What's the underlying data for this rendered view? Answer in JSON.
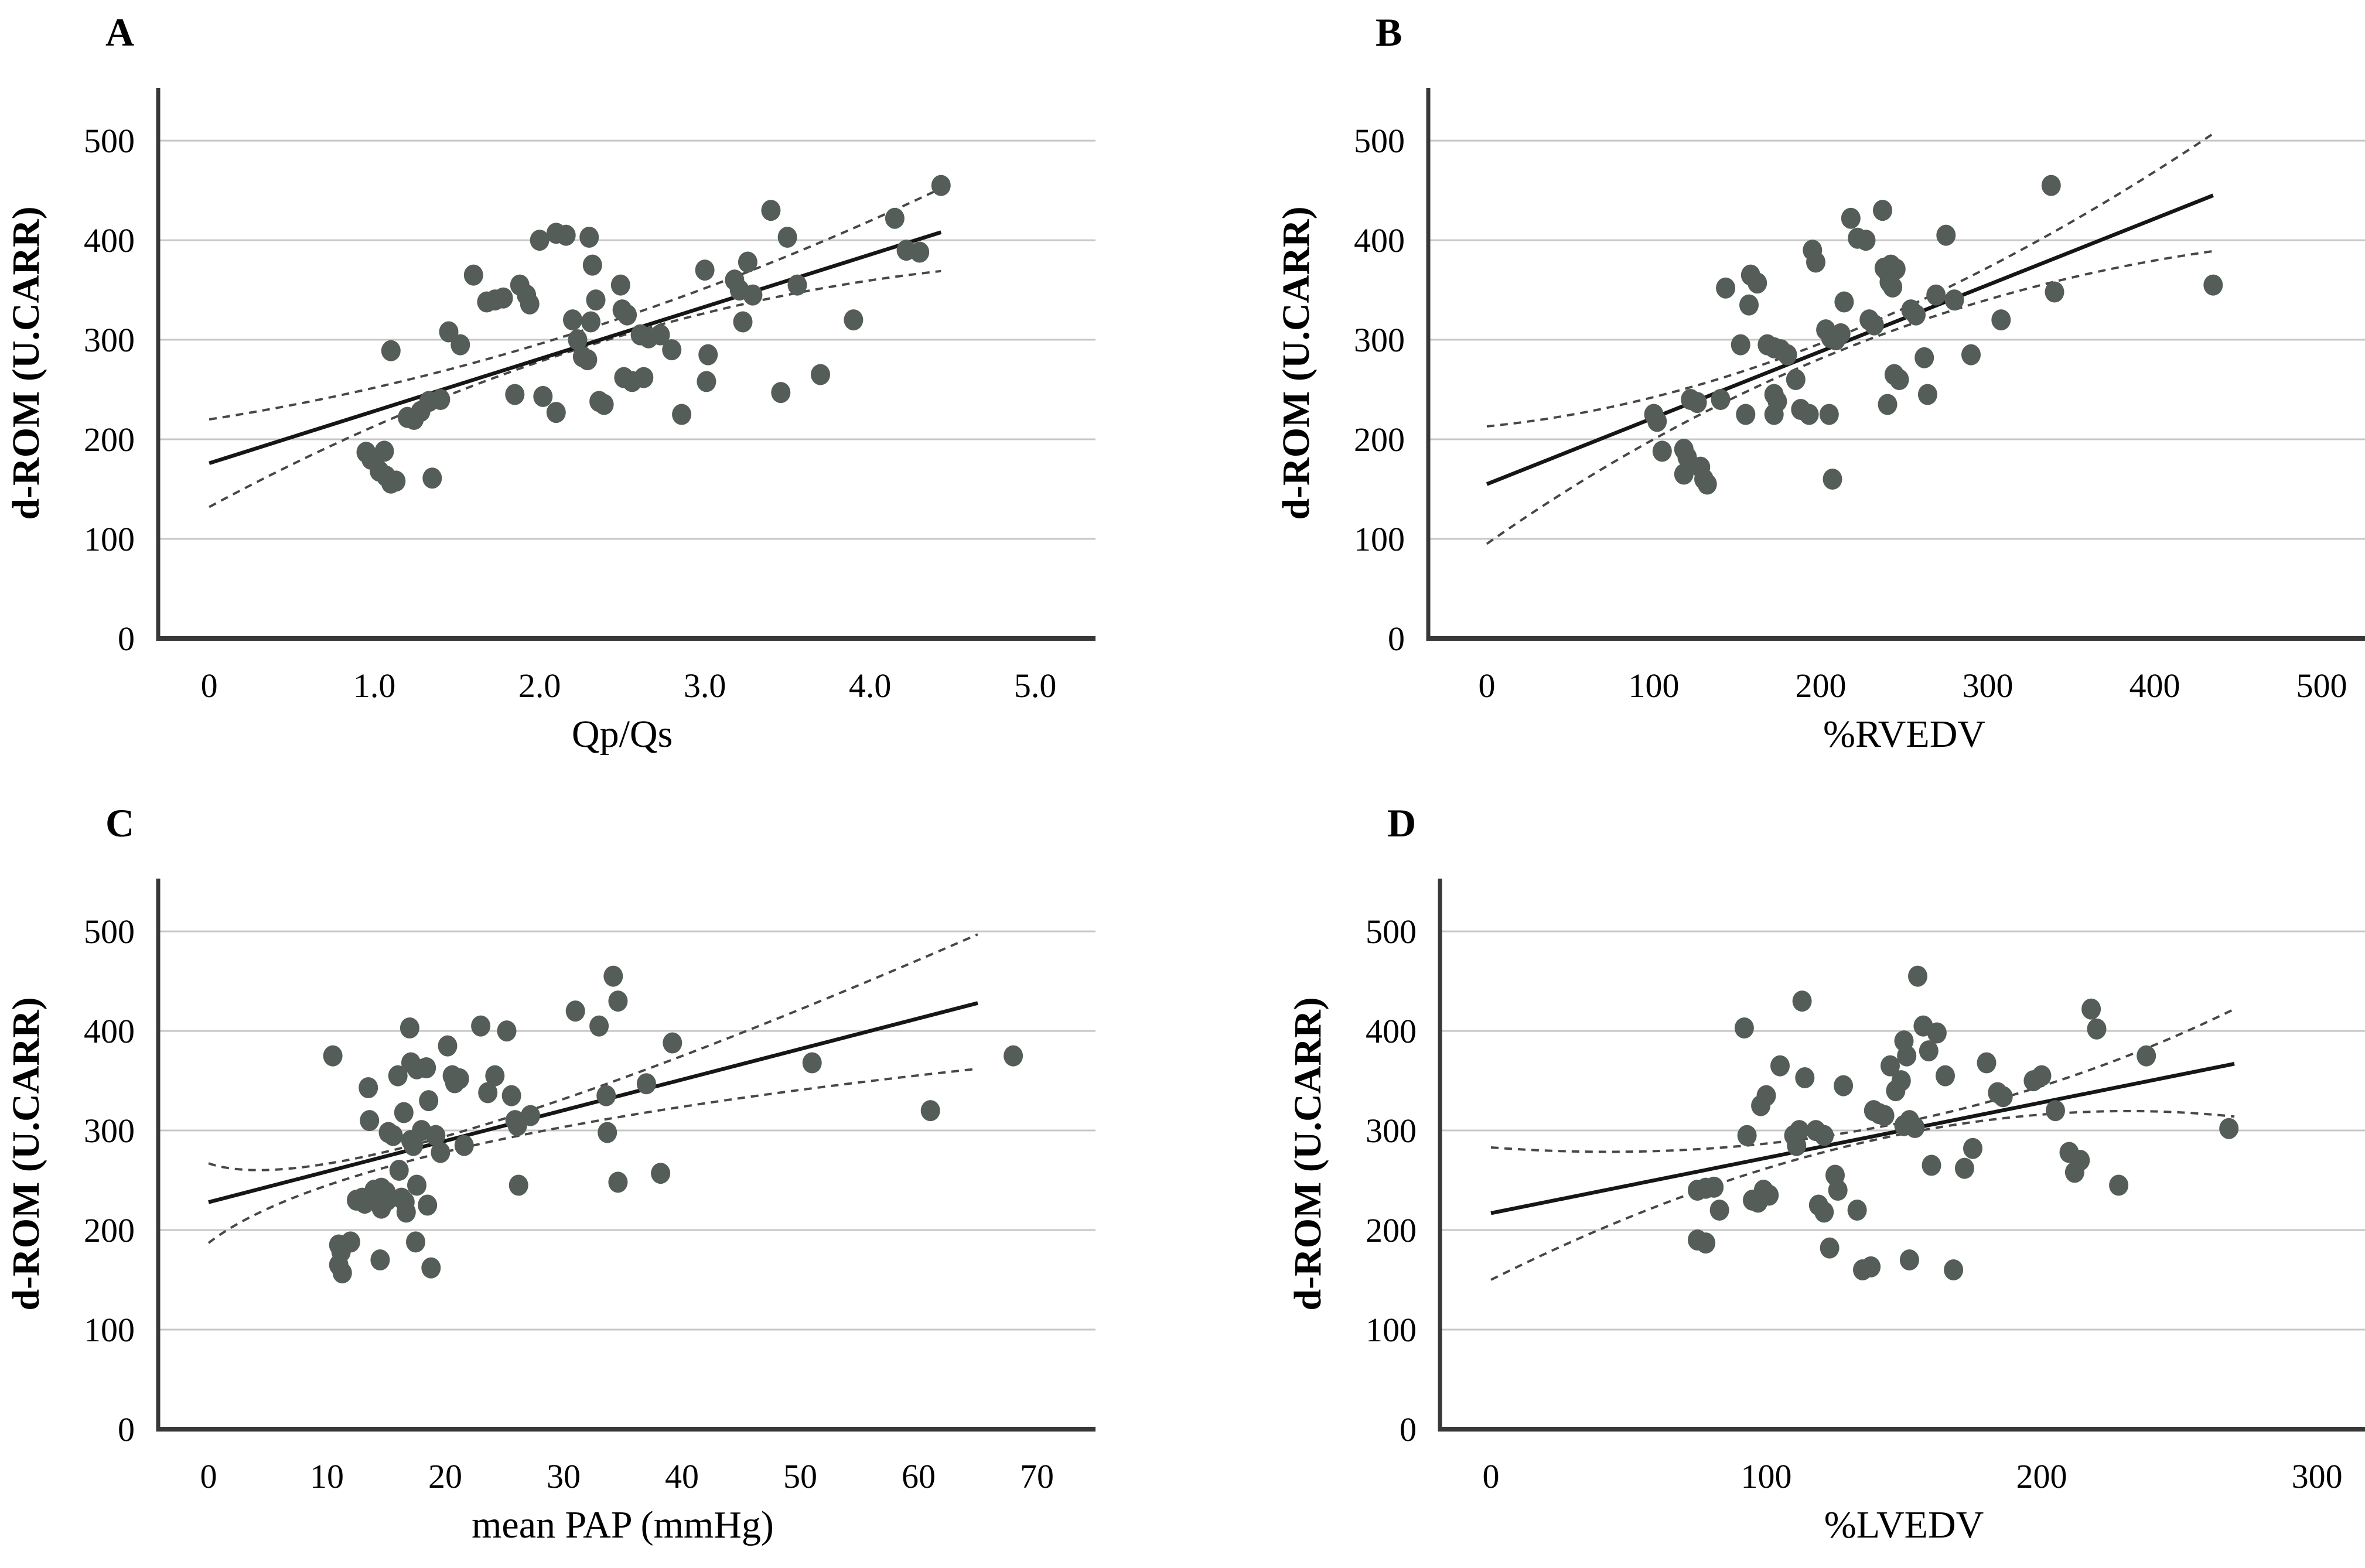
{
  "figure": {
    "description": "Four-panel scatter plot figure with linear regression fits and 95% confidence-interval dashed bands",
    "panel_labels": [
      "A",
      "B",
      "C",
      "D"
    ]
  },
  "colors": {
    "point": "#545d57",
    "fit_line": "#161616",
    "ci_line": "#474747",
    "grid": "#c7c7c7",
    "axis": "#383838",
    "text": "#000000"
  },
  "chart_data": [
    {
      "type": "scatter",
      "label": "A",
      "xlabel": "Qp/Qs",
      "ylabel": "d-ROM (U.CARR)",
      "legend": "none",
      "grid": "horizontal",
      "x_ticks": [
        {
          "v": 0,
          "label": "0"
        },
        {
          "v": 1,
          "label": "1.0"
        },
        {
          "v": 2,
          "label": "2.0"
        },
        {
          "v": 3,
          "label": "3.0"
        },
        {
          "v": 4,
          "label": "4.0"
        },
        {
          "v": 5,
          "label": "5.0"
        }
      ],
      "y_ticks": [
        0,
        100,
        200,
        300,
        400,
        500
      ],
      "xlim": [
        -0.309,
        5.365
      ],
      "ylim": [
        0,
        553
      ],
      "fit_line": {
        "x": [
          0,
          4.43
        ],
        "y": [
          176,
          408
        ]
      },
      "ci_upper": {
        "x": [
          0,
          2.2,
          4.43
        ],
        "y": [
          220,
          306,
          452
        ]
      },
      "ci_lower": {
        "x": [
          0,
          2.2,
          4.43
        ],
        "y": [
          132,
          289,
          369
        ]
      },
      "points": [
        [
          0.95,
          187
        ],
        [
          0.98,
          180
        ],
        [
          1.03,
          168
        ],
        [
          1.06,
          188
        ],
        [
          1.07,
          163
        ],
        [
          1.1,
          156
        ],
        [
          1.13,
          158
        ],
        [
          1.1,
          289
        ],
        [
          1.2,
          222
        ],
        [
          1.24,
          220
        ],
        [
          1.28,
          228
        ],
        [
          1.33,
          238
        ],
        [
          1.4,
          240
        ],
        [
          1.35,
          161
        ],
        [
          1.45,
          308
        ],
        [
          1.52,
          295
        ],
        [
          1.6,
          365
        ],
        [
          1.68,
          338
        ],
        [
          1.73,
          340
        ],
        [
          1.78,
          342
        ],
        [
          1.85,
          245
        ],
        [
          1.88,
          355
        ],
        [
          1.92,
          345
        ],
        [
          1.94,
          336
        ],
        [
          2.0,
          400
        ],
        [
          2.02,
          243
        ],
        [
          2.1,
          407
        ],
        [
          2.16,
          405
        ],
        [
          2.1,
          227
        ],
        [
          2.2,
          320
        ],
        [
          2.23,
          300
        ],
        [
          2.26,
          283
        ],
        [
          2.29,
          280
        ],
        [
          2.31,
          318
        ],
        [
          2.3,
          403
        ],
        [
          2.32,
          375
        ],
        [
          2.34,
          340
        ],
        [
          2.36,
          238
        ],
        [
          2.39,
          235
        ],
        [
          2.49,
          355
        ],
        [
          2.5,
          330
        ],
        [
          2.53,
          325
        ],
        [
          2.51,
          262
        ],
        [
          2.56,
          258
        ],
        [
          2.63,
          262
        ],
        [
          2.61,
          305
        ],
        [
          2.66,
          302
        ],
        [
          2.73,
          305
        ],
        [
          2.8,
          290
        ],
        [
          2.86,
          225
        ],
        [
          3.0,
          370
        ],
        [
          3.02,
          285
        ],
        [
          3.01,
          258
        ],
        [
          3.18,
          360
        ],
        [
          3.21,
          350
        ],
        [
          3.26,
          378
        ],
        [
          3.29,
          345
        ],
        [
          3.23,
          318
        ],
        [
          3.4,
          430
        ],
        [
          3.46,
          247
        ],
        [
          3.5,
          403
        ],
        [
          3.56,
          355
        ],
        [
          3.7,
          265
        ],
        [
          3.9,
          320
        ],
        [
          4.15,
          422
        ],
        [
          4.22,
          390
        ],
        [
          4.3,
          388
        ],
        [
          4.43,
          455
        ]
      ]
    },
    {
      "type": "scatter",
      "label": "B",
      "xlabel": "%RVEDV",
      "ylabel": "d-ROM (U.CARR)",
      "legend": "none",
      "grid": "horizontal",
      "x_ticks": [
        {
          "v": 0,
          "label": "0"
        },
        {
          "v": 100,
          "label": "100"
        },
        {
          "v": 200,
          "label": "200"
        },
        {
          "v": 300,
          "label": "300"
        },
        {
          "v": 400,
          "label": "400"
        },
        {
          "v": 500,
          "label": "500"
        }
      ],
      "y_ticks": [
        0,
        100,
        200,
        300,
        400,
        500
      ],
      "xlim": [
        -35.1,
        526.3
      ],
      "ylim": [
        0,
        553
      ],
      "fit_line": {
        "x": [
          0,
          435
        ],
        "y": [
          155,
          445
        ]
      },
      "ci_upper": {
        "x": [
          0,
          210,
          435
        ],
        "y": [
          213,
          303,
          507
        ]
      },
      "ci_lower": {
        "x": [
          0,
          210,
          435
        ],
        "y": [
          95,
          288,
          389
        ]
      },
      "points": [
        [
          100,
          225
        ],
        [
          102,
          218
        ],
        [
          105,
          188
        ],
        [
          118,
          190
        ],
        [
          120,
          182
        ],
        [
          118,
          165
        ],
        [
          128,
          172
        ],
        [
          130,
          160
        ],
        [
          132,
          155
        ],
        [
          122,
          240
        ],
        [
          126,
          237
        ],
        [
          140,
          240
        ],
        [
          143,
          352
        ],
        [
          152,
          295
        ],
        [
          158,
          365
        ],
        [
          162,
          357
        ],
        [
          157,
          335
        ],
        [
          155,
          225
        ],
        [
          168,
          295
        ],
        [
          172,
          292
        ],
        [
          176,
          290
        ],
        [
          180,
          285
        ],
        [
          172,
          245
        ],
        [
          174,
          238
        ],
        [
          172,
          225
        ],
        [
          185,
          260
        ],
        [
          188,
          230
        ],
        [
          193,
          225
        ],
        [
          195,
          390
        ],
        [
          197,
          378
        ],
        [
          203,
          310
        ],
        [
          206,
          302
        ],
        [
          209,
          300
        ],
        [
          212,
          306
        ],
        [
          205,
          225
        ],
        [
          207,
          160
        ],
        [
          214,
          338
        ],
        [
          218,
          422
        ],
        [
          222,
          402
        ],
        [
          227,
          400
        ],
        [
          229,
          320
        ],
        [
          232,
          315
        ],
        [
          237,
          430
        ],
        [
          238,
          372
        ],
        [
          240,
          368
        ],
        [
          242,
          375
        ],
        [
          241,
          358
        ],
        [
          245,
          371
        ],
        [
          243,
          353
        ],
        [
          244,
          265
        ],
        [
          247,
          260
        ],
        [
          240,
          235
        ],
        [
          254,
          330
        ],
        [
          257,
          325
        ],
        [
          262,
          282
        ],
        [
          264,
          245
        ],
        [
          269,
          345
        ],
        [
          275,
          405
        ],
        [
          280,
          340
        ],
        [
          290,
          285
        ],
        [
          308,
          320
        ],
        [
          338,
          455
        ],
        [
          340,
          348
        ],
        [
          435,
          355
        ]
      ]
    },
    {
      "type": "scatter",
      "label": "C",
      "xlabel": "mean PAP (mmHg)",
      "ylabel": "d-ROM (U.CARR)",
      "legend": "none",
      "grid": "horizontal",
      "x_ticks": [
        {
          "v": 0,
          "label": "0"
        },
        {
          "v": 10,
          "label": "10"
        },
        {
          "v": 20,
          "label": "20"
        },
        {
          "v": 30,
          "label": "30"
        },
        {
          "v": 40,
          "label": "40"
        },
        {
          "v": 50,
          "label": "50"
        },
        {
          "v": 60,
          "label": "60"
        },
        {
          "v": 70,
          "label": "70"
        }
      ],
      "y_ticks": [
        0,
        100,
        200,
        300,
        400,
        500
      ],
      "xlim": [
        -4.257,
        74.95
      ],
      "ylim": [
        0,
        553
      ],
      "fit_line": {
        "x": [
          0,
          65
        ],
        "y": [
          228,
          428
        ]
      },
      "ci_upper": {
        "x": [
          0,
          22,
          65
        ],
        "y": [
          267,
          301,
          497
        ]
      },
      "ci_lower": {
        "x": [
          0,
          22,
          65
        ],
        "y": [
          187,
          284,
          362
        ]
      },
      "points": [
        [
          10.5,
          375
        ],
        [
          11,
          185
        ],
        [
          11.2,
          178
        ],
        [
          11,
          165
        ],
        [
          11.3,
          157
        ],
        [
          12,
          188
        ],
        [
          12.5,
          230
        ],
        [
          13,
          232
        ],
        [
          13.2,
          227
        ],
        [
          13.5,
          343
        ],
        [
          13.6,
          310
        ],
        [
          14,
          240
        ],
        [
          14.3,
          238
        ],
        [
          14.6,
          242
        ],
        [
          14.6,
          222
        ],
        [
          15,
          238
        ],
        [
          15.1,
          230
        ],
        [
          15.2,
          298
        ],
        [
          15.6,
          295
        ],
        [
          14.5,
          170
        ],
        [
          16,
          355
        ],
        [
          16.5,
          318
        ],
        [
          16.1,
          260
        ],
        [
          16.3,
          232
        ],
        [
          16.6,
          228
        ],
        [
          16.7,
          218
        ],
        [
          17,
          403
        ],
        [
          17.1,
          368
        ],
        [
          17.6,
          362
        ],
        [
          17.1,
          290
        ],
        [
          17.3,
          285
        ],
        [
          17.6,
          245
        ],
        [
          17.5,
          188
        ],
        [
          18,
          300
        ],
        [
          18.4,
          363
        ],
        [
          18.6,
          330
        ],
        [
          18.5,
          225
        ],
        [
          18.8,
          162
        ],
        [
          19.2,
          295
        ],
        [
          19.6,
          278
        ],
        [
          20.2,
          385
        ],
        [
          20.6,
          355
        ],
        [
          20.8,
          348
        ],
        [
          21.2,
          352
        ],
        [
          21.6,
          285
        ],
        [
          23,
          405
        ],
        [
          23.6,
          338
        ],
        [
          24.2,
          355
        ],
        [
          25.2,
          400
        ],
        [
          25.6,
          335
        ],
        [
          25.9,
          310
        ],
        [
          26.1,
          305
        ],
        [
          26.2,
          245
        ],
        [
          27.2,
          315
        ],
        [
          31,
          420
        ],
        [
          33,
          405
        ],
        [
          33.6,
          335
        ],
        [
          33.7,
          298
        ],
        [
          34.2,
          455
        ],
        [
          34.6,
          430
        ],
        [
          34.6,
          248
        ],
        [
          37,
          347
        ],
        [
          38.2,
          257
        ],
        [
          39.2,
          388
        ],
        [
          51,
          368
        ],
        [
          61,
          320
        ],
        [
          68,
          375
        ]
      ]
    },
    {
      "type": "scatter",
      "label": "D",
      "xlabel": "%LVEDV",
      "ylabel": "d-ROM (U.CARR)",
      "legend": "none",
      "grid": "horizontal",
      "x_ticks": [
        {
          "v": 0,
          "label": "0"
        },
        {
          "v": 100,
          "label": "100"
        },
        {
          "v": 200,
          "label": "200"
        },
        {
          "v": 300,
          "label": "300"
        }
      ],
      "y_ticks": [
        0,
        100,
        200,
        300,
        400,
        500
      ],
      "xlim": [
        -18.51,
        321.9
      ],
      "ylim": [
        0,
        553
      ],
      "fit_line": {
        "x": [
          0,
          270
        ],
        "y": [
          217,
          367
        ]
      },
      "ci_upper": {
        "x": [
          0,
          140,
          270
        ],
        "y": [
          283,
          303,
          422
        ]
      },
      "ci_lower": {
        "x": [
          0,
          140,
          270
        ],
        "y": [
          150,
          291,
          314
        ]
      },
      "points": [
        [
          75,
          240
        ],
        [
          78,
          242
        ],
        [
          81,
          243
        ],
        [
          75,
          190
        ],
        [
          78,
          187
        ],
        [
          83,
          220
        ],
        [
          92,
          403
        ],
        [
          93,
          295
        ],
        [
          95,
          230
        ],
        [
          97,
          228
        ],
        [
          99,
          240
        ],
        [
          101,
          235
        ],
        [
          98,
          325
        ],
        [
          100,
          335
        ],
        [
          105,
          365
        ],
        [
          110,
          295
        ],
        [
          112,
          300
        ],
        [
          111,
          285
        ],
        [
          113,
          430
        ],
        [
          114,
          353
        ],
        [
          118,
          300
        ],
        [
          121,
          295
        ],
        [
          119,
          225
        ],
        [
          121,
          218
        ],
        [
          125,
          255
        ],
        [
          126,
          240
        ],
        [
          123,
          182
        ],
        [
          128,
          345
        ],
        [
          133,
          220
        ],
        [
          135,
          160
        ],
        [
          138,
          163
        ],
        [
          139,
          320
        ],
        [
          141,
          317
        ],
        [
          143,
          315
        ],
        [
          145,
          365
        ],
        [
          147,
          340
        ],
        [
          149,
          350
        ],
        [
          150,
          390
        ],
        [
          151,
          375
        ],
        [
          150,
          305
        ],
        [
          152,
          310
        ],
        [
          154,
          303
        ],
        [
          152,
          170
        ],
        [
          155,
          455
        ],
        [
          157,
          405
        ],
        [
          159,
          380
        ],
        [
          160,
          265
        ],
        [
          162,
          398
        ],
        [
          165,
          355
        ],
        [
          168,
          160
        ],
        [
          172,
          262
        ],
        [
          175,
          282
        ],
        [
          180,
          368
        ],
        [
          184,
          338
        ],
        [
          186,
          334
        ],
        [
          197,
          350
        ],
        [
          200,
          355
        ],
        [
          205,
          320
        ],
        [
          210,
          278
        ],
        [
          212,
          258
        ],
        [
          214,
          270
        ],
        [
          218,
          422
        ],
        [
          220,
          402
        ],
        [
          228,
          245
        ],
        [
          238,
          375
        ],
        [
          268,
          302
        ]
      ]
    }
  ]
}
